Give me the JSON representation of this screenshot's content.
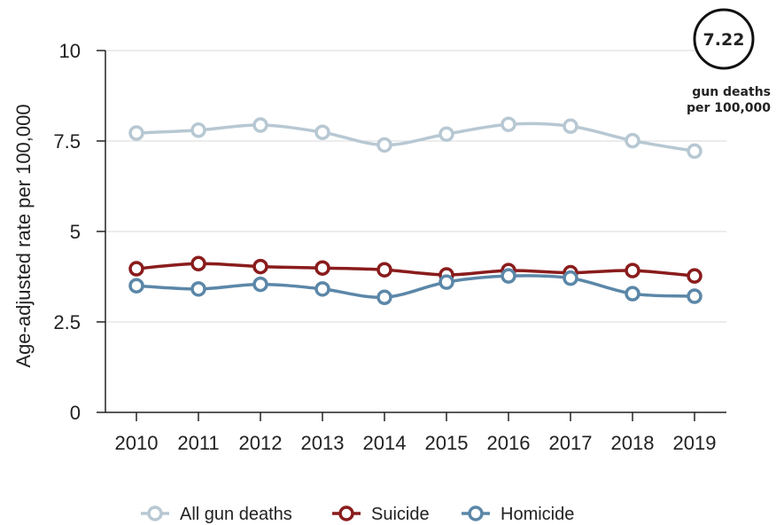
{
  "chart_data": {
    "type": "line",
    "ylabel": "Age-adjusted rate per 100,000",
    "ylim": [
      0,
      10
    ],
    "yticks": [
      0,
      2.5,
      5,
      7.5,
      10
    ],
    "ytick_labels": [
      "0",
      "2.5",
      "5",
      "7.5",
      "10"
    ],
    "categories": [
      "2010",
      "2011",
      "2012",
      "2013",
      "2014",
      "2015",
      "2016",
      "2017",
      "2018",
      "2019"
    ],
    "grid": true,
    "legend_position": "bottom",
    "series": [
      {
        "name": "All gun deaths",
        "color": "#b7c8d3",
        "values": [
          7.72,
          7.8,
          7.94,
          7.74,
          7.39,
          7.69,
          7.96,
          7.91,
          7.51,
          7.22
        ]
      },
      {
        "name": "Suicide",
        "color": "#8a1c1c",
        "values": [
          3.97,
          4.11,
          4.03,
          3.99,
          3.94,
          3.8,
          3.92,
          3.86,
          3.92,
          3.77
        ]
      },
      {
        "name": "Homicide",
        "color": "#5b87a8",
        "values": [
          3.5,
          3.41,
          3.54,
          3.41,
          3.18,
          3.6,
          3.77,
          3.71,
          3.28,
          3.21
        ]
      }
    ],
    "callout": {
      "value": "7.22",
      "line1": "gun deaths",
      "line2": "per 100,000"
    }
  }
}
